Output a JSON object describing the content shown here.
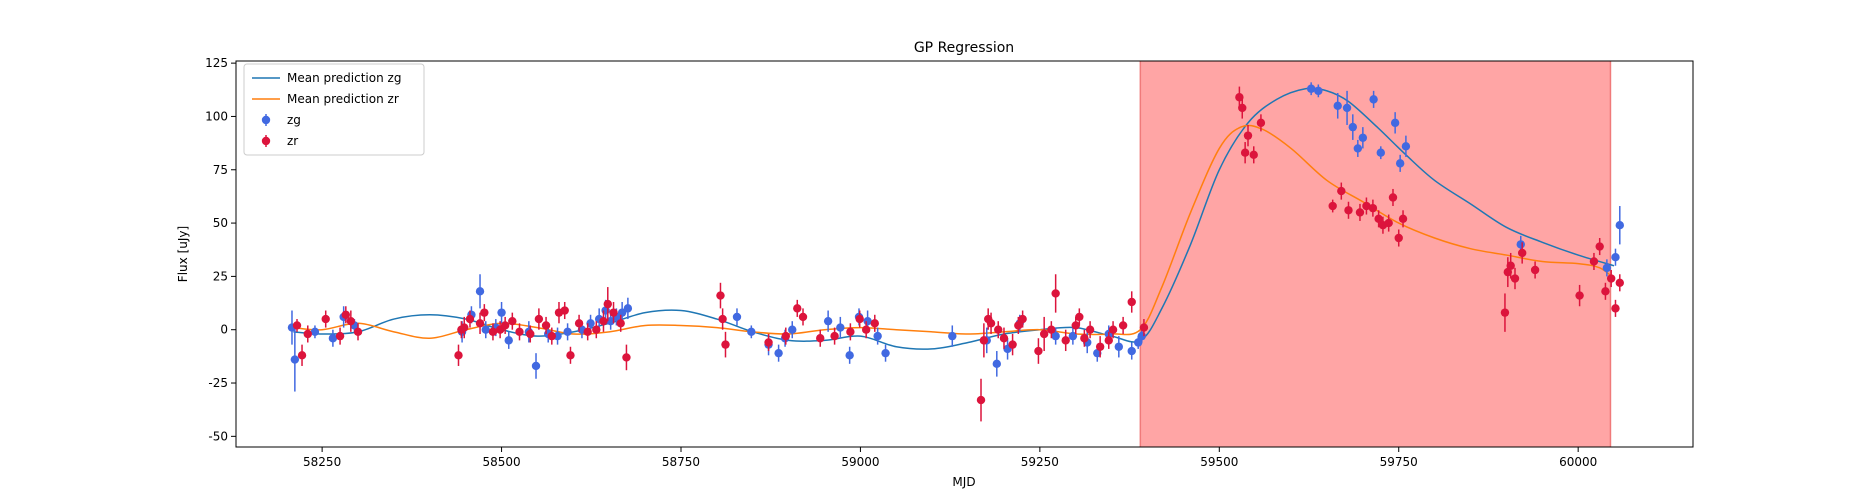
{
  "chart_data": {
    "type": "scatter",
    "title": "GP Regression",
    "xlabel": "MJD",
    "ylabel": "Flux [uJy]",
    "xlim": [
      58130,
      60160
    ],
    "ylim": [
      -55,
      126
    ],
    "xticks": [
      58250,
      58500,
      58750,
      59000,
      59250,
      59500,
      59750,
      60000
    ],
    "yticks": [
      -50,
      -25,
      0,
      25,
      50,
      75,
      100,
      125
    ],
    "grid": false,
    "legend_position": "upper left",
    "shaded_region": {
      "x_start": 59390,
      "x_end": 60045,
      "color": "#ffa5a5"
    },
    "series": [
      {
        "name": "Mean prediction zg",
        "kind": "line",
        "color": "#1f77b4",
        "x": [
          58210,
          58250,
          58300,
          58350,
          58400,
          58450,
          58500,
          58550,
          58600,
          58650,
          58700,
          58750,
          58800,
          58850,
          58900,
          58950,
          59000,
          59050,
          59100,
          59150,
          59200,
          59250,
          59300,
          59350,
          59390,
          59420,
          59460,
          59500,
          59540,
          59580,
          59620,
          59650,
          59680,
          59720,
          59760,
          59800,
          59850,
          59900,
          59950,
          60000,
          60050
        ],
        "y": [
          -1,
          -2,
          -1,
          5,
          7,
          5,
          0,
          -3,
          -1,
          3,
          8,
          9,
          5,
          -1,
          -5,
          -5,
          -3,
          -8,
          -9,
          -6,
          -2,
          0,
          1,
          -3,
          -5,
          10,
          40,
          75,
          97,
          108,
          113,
          112,
          107,
          95,
          82,
          70,
          59,
          48,
          41,
          35,
          30
        ]
      },
      {
        "name": "Mean prediction zr",
        "kind": "line",
        "color": "#ff7f0e",
        "x": [
          58210,
          58250,
          58300,
          58350,
          58400,
          58450,
          58500,
          58550,
          58600,
          58650,
          58700,
          58750,
          58800,
          58850,
          58900,
          58950,
          59000,
          59050,
          59100,
          59150,
          59200,
          59250,
          59300,
          59350,
          59390,
          59420,
          59460,
          59500,
          59530,
          59560,
          59600,
          59650,
          59700,
          59750,
          59800,
          59850,
          59900,
          59950,
          60000,
          60030,
          60050
        ],
        "y": [
          1,
          0,
          3,
          -1,
          -4,
          0,
          3,
          1,
          -2,
          -1,
          2,
          2,
          1,
          -1,
          -2,
          0,
          1,
          0,
          -1,
          -2,
          -1,
          0,
          -2,
          -2,
          0,
          20,
          55,
          85,
          95,
          94,
          85,
          70,
          60,
          50,
          43,
          38,
          35,
          32,
          31,
          29,
          24
        ]
      },
      {
        "name": "zg",
        "kind": "errorbar",
        "color": "#4169e1",
        "x": [
          58208,
          58212,
          58240,
          58265,
          58280,
          58295,
          58445,
          58458,
          58470,
          58478,
          58492,
          58500,
          58510,
          58538,
          58548,
          58565,
          58578,
          58592,
          58612,
          58624,
          58636,
          58645,
          58652,
          58660,
          58668,
          58676,
          58828,
          58848,
          58872,
          58886,
          58895,
          58905,
          58955,
          58972,
          58985,
          58998,
          59010,
          59024,
          59035,
          59128,
          59176,
          59190,
          59205,
          59222,
          59272,
          59296,
          59316,
          59330,
          59346,
          59360,
          59378,
          59387,
          59392,
          59628,
          59638,
          59665,
          59678,
          59686,
          59693,
          59700,
          59715,
          59725,
          59745,
          59752,
          59760,
          59920,
          60040,
          60052,
          60058
        ],
        "y": [
          1,
          -14,
          -1,
          -4,
          6,
          2,
          -1,
          7,
          18,
          0,
          1,
          8,
          -5,
          -1,
          -17,
          -2,
          -3,
          -1,
          0,
          3,
          5,
          9,
          4,
          6,
          8,
          10,
          6,
          -1,
          -7,
          -11,
          -4,
          0,
          4,
          1,
          -12,
          6,
          4,
          -3,
          -11,
          -3,
          -5,
          -16,
          -9,
          3,
          -3,
          -3,
          -6,
          -11,
          -2,
          -8,
          -10,
          -6,
          -3,
          113,
          112,
          105,
          104,
          95,
          85,
          90,
          108,
          83,
          97,
          78,
          86,
          40,
          29,
          34,
          49
        ],
        "err": [
          8,
          15,
          3,
          4,
          5,
          3,
          5,
          4,
          8,
          4,
          4,
          5,
          4,
          5,
          6,
          4,
          4,
          4,
          4,
          4,
          5,
          5,
          4,
          4,
          5,
          5,
          4,
          3,
          5,
          4,
          4,
          4,
          5,
          5,
          4,
          4,
          5,
          4,
          4,
          5,
          6,
          6,
          5,
          4,
          4,
          4,
          5,
          4,
          4,
          5,
          4,
          3,
          3,
          3,
          3,
          6,
          8,
          6,
          4,
          5,
          4,
          3,
          5,
          4,
          5,
          4,
          4,
          4,
          9
        ]
      },
      {
        "name": "zr",
        "kind": "errorbar",
        "color": "#dc143c",
        "x": [
          58215,
          58222,
          58230,
          58255,
          58275,
          58283,
          58290,
          58300,
          58440,
          58444,
          58448,
          58456,
          58470,
          58476,
          58488,
          58498,
          58505,
          58515,
          58525,
          58540,
          58552,
          58562,
          58570,
          58580,
          58588,
          58596,
          58608,
          58620,
          58632,
          58642,
          58648,
          58656,
          58666,
          58674,
          58805,
          58808,
          58812,
          58872,
          58896,
          58912,
          58920,
          58944,
          58964,
          58986,
          58999,
          59008,
          59020,
          59168,
          59172,
          59178,
          59182,
          59192,
          59200,
          59212,
          59220,
          59226,
          59248,
          59256,
          59266,
          59272,
          59286,
          59300,
          59305,
          59312,
          59320,
          59334,
          59346,
          59352,
          59366,
          59378,
          59395,
          59528,
          59532,
          59536,
          59540,
          59548,
          59558,
          59658,
          59670,
          59680,
          59696,
          59705,
          59714,
          59722,
          59728,
          59736,
          59742,
          59750,
          59756,
          59898,
          59902,
          59906,
          59912,
          59922,
          59940,
          60002,
          60022,
          60030,
          60038,
          60046,
          60052,
          60058
        ],
        "y": [
          2,
          -12,
          -2,
          5,
          -3,
          7,
          4,
          -1,
          -12,
          0,
          1,
          5,
          3,
          8,
          -1,
          0,
          2,
          4,
          -1,
          -2,
          5,
          2,
          -3,
          8,
          9,
          -12,
          3,
          -1,
          0,
          4,
          12,
          8,
          3,
          -13,
          16,
          5,
          -7,
          -6,
          -3,
          10,
          6,
          -4,
          -3,
          -1,
          5,
          0,
          3,
          -33,
          -5,
          5,
          3,
          0,
          -4,
          -7,
          2,
          5,
          -10,
          -2,
          0,
          17,
          -5,
          2,
          6,
          -4,
          0,
          -8,
          -5,
          0,
          2,
          13,
          1,
          109,
          104,
          83,
          91,
          82,
          97,
          58,
          65,
          56,
          55,
          58,
          57,
          52,
          49,
          50,
          62,
          43,
          52,
          8,
          27,
          30,
          24,
          36,
          28,
          16,
          32,
          39,
          18,
          24,
          10,
          22
        ],
        "err": [
          3,
          5,
          4,
          4,
          4,
          4,
          5,
          4,
          5,
          4,
          5,
          4,
          5,
          4,
          4,
          4,
          4,
          4,
          4,
          4,
          5,
          4,
          4,
          5,
          4,
          4,
          4,
          4,
          4,
          5,
          8,
          5,
          4,
          6,
          6,
          5,
          6,
          4,
          4,
          4,
          4,
          4,
          4,
          4,
          4,
          4,
          4,
          10,
          8,
          5,
          5,
          4,
          5,
          5,
          4,
          4,
          6,
          8,
          4,
          9,
          5,
          4,
          4,
          4,
          4,
          5,
          4,
          4,
          4,
          5,
          4,
          5,
          5,
          5,
          5,
          4,
          4,
          3,
          4,
          4,
          4,
          4,
          4,
          4,
          4,
          4,
          4,
          4,
          4,
          9,
          7,
          6,
          5,
          5,
          4,
          5,
          4,
          4,
          4,
          4,
          4,
          4
        ]
      }
    ]
  }
}
